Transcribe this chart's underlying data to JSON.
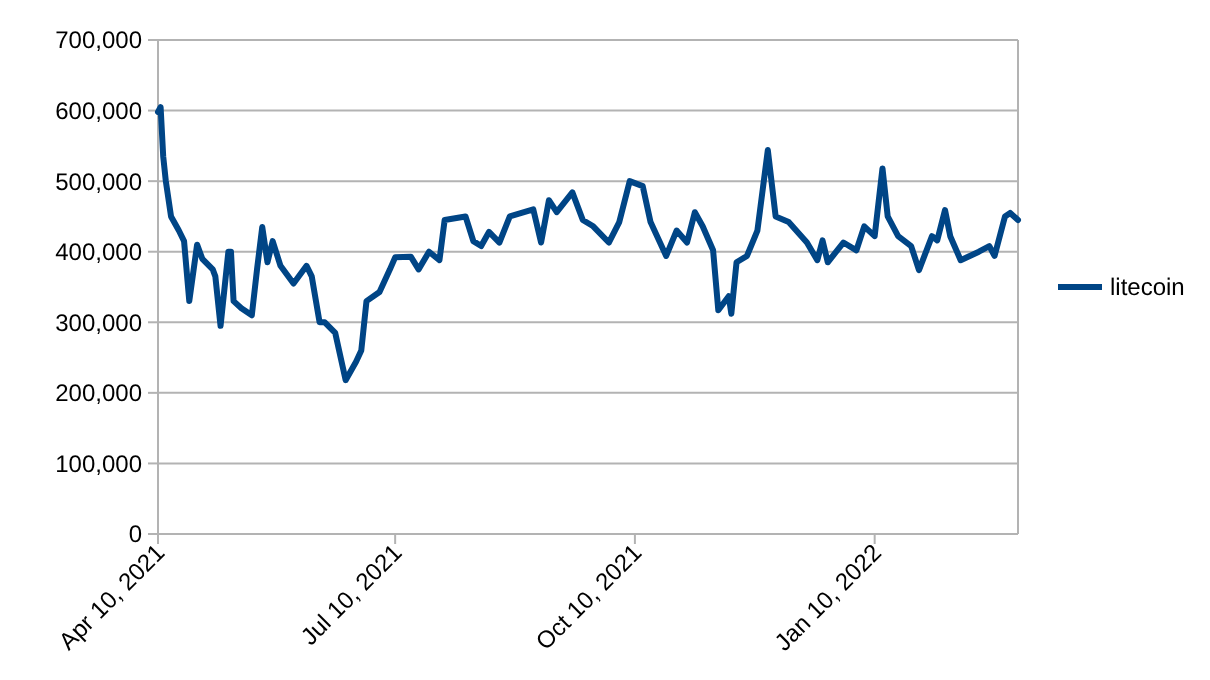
{
  "chart_data": {
    "type": "line",
    "x": [
      "2021-04-10",
      "2021-04-11",
      "2021-04-12",
      "2021-04-13",
      "2021-04-15",
      "2021-04-18",
      "2021-04-20",
      "2021-04-22",
      "2021-04-25",
      "2021-04-27",
      "2021-05-01",
      "2021-05-02",
      "2021-05-04",
      "2021-05-07",
      "2021-05-08",
      "2021-05-09",
      "2021-05-12",
      "2021-05-16",
      "2021-05-18",
      "2021-05-20",
      "2021-05-22",
      "2021-05-24",
      "2021-05-27",
      "2021-06-01",
      "2021-06-06",
      "2021-06-08",
      "2021-06-11",
      "2021-06-13",
      "2021-06-17",
      "2021-06-21",
      "2021-06-25",
      "2021-06-27",
      "2021-06-29",
      "2021-07-04",
      "2021-07-08",
      "2021-07-10",
      "2021-07-16",
      "2021-07-19",
      "2021-07-23",
      "2021-07-27",
      "2021-07-29",
      "2021-08-06",
      "2021-08-09",
      "2021-08-12",
      "2021-08-15",
      "2021-08-19",
      "2021-08-23",
      "2021-09-01",
      "2021-09-04",
      "2021-09-07",
      "2021-09-10",
      "2021-09-16",
      "2021-09-20",
      "2021-09-24",
      "2021-09-30",
      "2021-10-04",
      "2021-10-08",
      "2021-10-13",
      "2021-10-16",
      "2021-10-22",
      "2021-10-26",
      "2021-10-30",
      "2021-11-02",
      "2021-11-05",
      "2021-11-09",
      "2021-11-11",
      "2021-11-15",
      "2021-11-16",
      "2021-11-18",
      "2021-11-22",
      "2021-11-26",
      "2021-11-30",
      "2021-12-03",
      "2021-12-08",
      "2021-12-15",
      "2021-12-19",
      "2021-12-21",
      "2021-12-23",
      "2021-12-29",
      "2022-01-03",
      "2022-01-06",
      "2022-01-10",
      "2022-01-13",
      "2022-01-15",
      "2022-01-19",
      "2022-01-24",
      "2022-01-27",
      "2022-02-01",
      "2022-02-03",
      "2022-02-06",
      "2022-02-08",
      "2022-02-12",
      "2022-02-19",
      "2022-02-23",
      "2022-02-25",
      "2022-03-01",
      "2022-03-03",
      "2022-03-06"
    ],
    "series": [
      {
        "name": "litecoin",
        "color": "#004586",
        "values": [
          598000,
          605000,
          535000,
          500000,
          450000,
          430000,
          415000,
          330000,
          410000,
          390000,
          375000,
          365000,
          295000,
          400000,
          400000,
          330000,
          320000,
          310000,
          375000,
          435000,
          385000,
          415000,
          380000,
          355000,
          380000,
          365000,
          300000,
          300000,
          285000,
          218000,
          244000,
          260000,
          330000,
          343000,
          375000,
          392000,
          393000,
          375000,
          400000,
          388000,
          445000,
          450000,
          415000,
          408000,
          428000,
          413000,
          450000,
          460000,
          413000,
          473000,
          456000,
          484000,
          445000,
          436000,
          413000,
          442000,
          500000,
          493000,
          442000,
          394000,
          430000,
          413000,
          456000,
          436000,
          402000,
          317000,
          337000,
          312000,
          385000,
          394000,
          430000,
          544000,
          450000,
          442000,
          413000,
          388000,
          416000,
          385000,
          413000,
          402000,
          436000,
          422000,
          518000,
          450000,
          422000,
          408000,
          374000,
          422000,
          416000,
          459000,
          422000,
          388000,
          400000,
          408000,
          394000,
          450000,
          455000,
          445000
        ]
      }
    ],
    "xlim": [
      "2021-04-10",
      "2022-03-06"
    ],
    "xticks": [
      {
        "value": "2021-04-10",
        "label": "Apr 10, 2021"
      },
      {
        "value": "2021-07-10",
        "label": "Jul 10, 2021"
      },
      {
        "value": "2021-10-10",
        "label": "Oct 10, 2021"
      },
      {
        "value": "2022-01-10",
        "label": "Jan 10, 2022"
      }
    ],
    "ylim": [
      0,
      700000
    ],
    "yticks": [
      {
        "value": 0,
        "label": "0"
      },
      {
        "value": 100000,
        "label": "100,000"
      },
      {
        "value": 200000,
        "label": "200,000"
      },
      {
        "value": 300000,
        "label": "300,000"
      },
      {
        "value": 400000,
        "label": "400,000"
      },
      {
        "value": 500000,
        "label": "500,000"
      },
      {
        "value": 600000,
        "label": "600,000"
      },
      {
        "value": 700000,
        "label": "700,000"
      }
    ],
    "grid": "y",
    "legend": "right",
    "marker": "none",
    "line_style": "solid"
  }
}
